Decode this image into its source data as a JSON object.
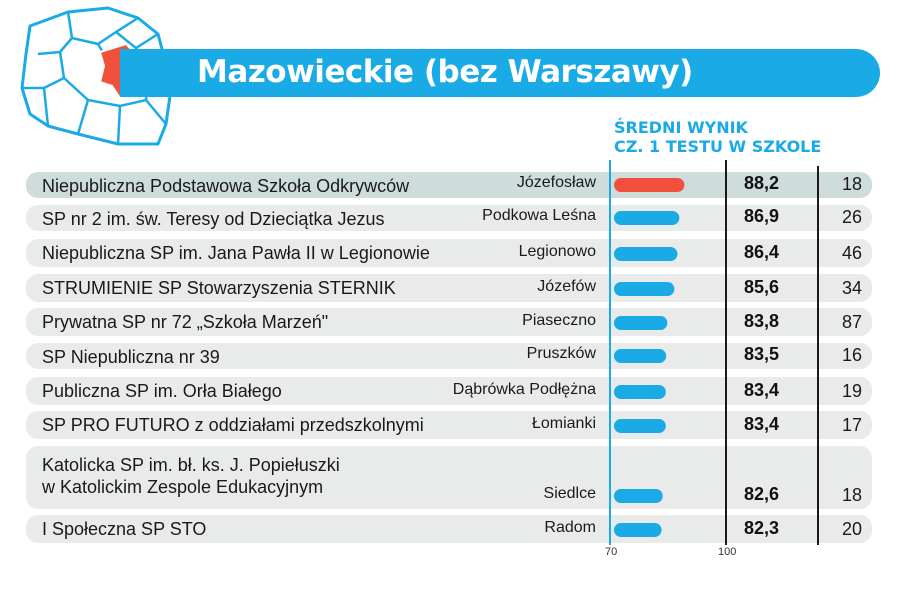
{
  "title": "Mazowieckie (bez Warszawy)",
  "column_header_line1": "ŚREDNI WYNIK",
  "column_header_line2": "CZ. 1 TESTU W SZKOLE",
  "colors": {
    "accent": "#1aaae6",
    "highlight": "#f0503c",
    "row_bg": "#e9eaea",
    "row_bg_highlight": "#cfdcdc"
  },
  "chart_data": {
    "type": "bar",
    "orientation": "horizontal",
    "xlim": [
      70,
      100
    ],
    "ticks": [
      "70",
      "100"
    ],
    "rows": [
      {
        "school_line1": "Niepubliczna Podstawowa Szkoła Odkrywców",
        "school_line2": "",
        "city": "Józefosław",
        "score": 88.2,
        "score_label": "88,2",
        "count": "18",
        "highlight": true
      },
      {
        "school_line1": "SP nr 2 im. św. Teresy od Dzieciątka Jezus",
        "school_line2": "",
        "city": "Podkowa Leśna",
        "score": 86.9,
        "score_label": "86,9",
        "count": "26",
        "highlight": false
      },
      {
        "school_line1": "Niepubliczna SP im. Jana Pawła II w Legionowie",
        "school_line2": "",
        "city": "Legionowo",
        "score": 86.4,
        "score_label": "86,4",
        "count": "46",
        "highlight": false
      },
      {
        "school_line1": "STRUMIENIE SP Stowarzyszenia STERNIK",
        "school_line2": "",
        "city": "Józefów",
        "score": 85.6,
        "score_label": "85,6",
        "count": "34",
        "highlight": false
      },
      {
        "school_line1": "Prywatna SP nr 72 „Szkoła Marzeń\"",
        "school_line2": "",
        "city": "Piaseczno",
        "score": 83.8,
        "score_label": "83,8",
        "count": "87",
        "highlight": false
      },
      {
        "school_line1": "SP Niepubliczna nr 39",
        "school_line2": "",
        "city": "Pruszków",
        "score": 83.5,
        "score_label": "83,5",
        "count": "16",
        "highlight": false
      },
      {
        "school_line1": "Publiczna SP im. Orła Białego",
        "school_line2": "",
        "city": "Dąbrówka Podłężna",
        "score": 83.4,
        "score_label": "83,4",
        "count": "19",
        "highlight": false
      },
      {
        "school_line1": "SP PRO FUTURO z oddziałami przedszkolnymi",
        "school_line2": "",
        "city": "Łomianki",
        "score": 83.4,
        "score_label": "83,4",
        "count": "17",
        "highlight": false
      },
      {
        "school_line1": "Katolicka SP im. bł. ks. J. Popiełuszki",
        "school_line2": "w Katolickim Zespole Edukacyjnym",
        "city": "Siedlce",
        "score": 82.6,
        "score_label": "82,6",
        "count": "18",
        "highlight": false
      },
      {
        "school_line1": "I Społeczna SP STO",
        "school_line2": "",
        "city": "Radom",
        "score": 82.3,
        "score_label": "82,3",
        "count": "20",
        "highlight": false
      }
    ]
  }
}
